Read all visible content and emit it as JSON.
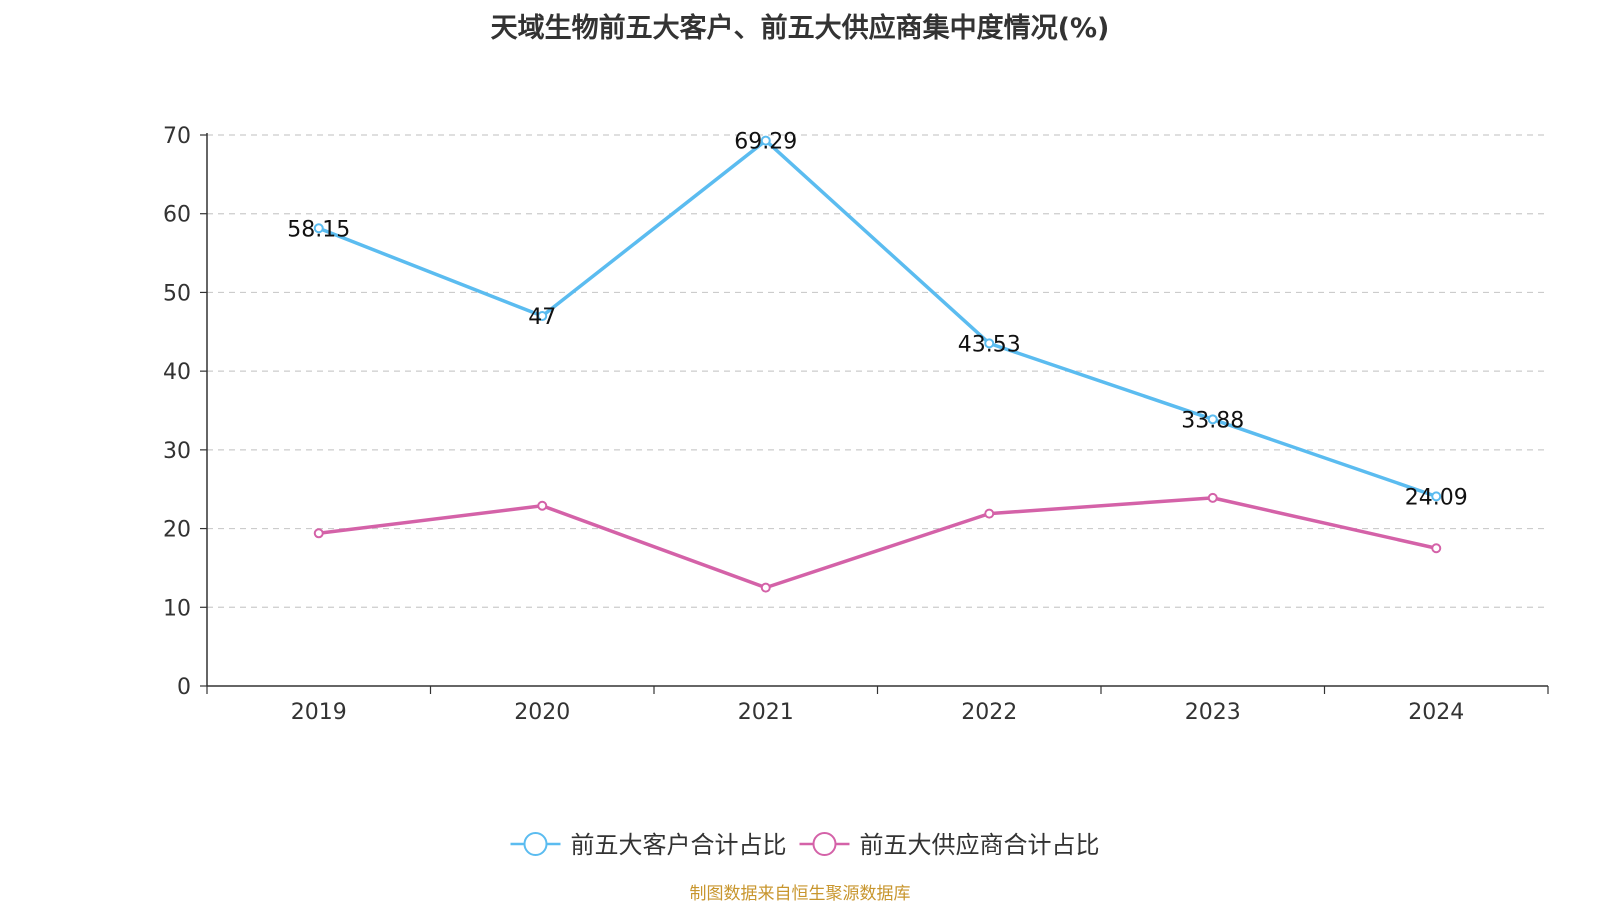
{
  "chart_data": {
    "type": "line",
    "title": "天域生物前五大客户、前五大供应商集中度情况(%)",
    "categories": [
      "2019",
      "2020",
      "2021",
      "2022",
      "2023",
      "2024"
    ],
    "ylim": [
      0,
      70
    ],
    "yticks": [
      0,
      10,
      20,
      30,
      40,
      50,
      60,
      70
    ],
    "grid": true,
    "legend_position": "bottom-center",
    "series": [
      {
        "name": "前五大客户合计占比",
        "color": "#5bbcf0",
        "values": [
          58.15,
          47,
          69.29,
          43.53,
          33.88,
          24.09
        ],
        "labels": [
          "58.15",
          "47",
          "69.29",
          "43.53",
          "33.88",
          "24.09"
        ]
      },
      {
        "name": "前五大供应商合计占比",
        "color": "#d462a8",
        "values": [
          19.4,
          22.9,
          12.5,
          21.9,
          23.9,
          17.5
        ]
      }
    ]
  },
  "source_note": "制图数据来自恒生聚源数据库"
}
